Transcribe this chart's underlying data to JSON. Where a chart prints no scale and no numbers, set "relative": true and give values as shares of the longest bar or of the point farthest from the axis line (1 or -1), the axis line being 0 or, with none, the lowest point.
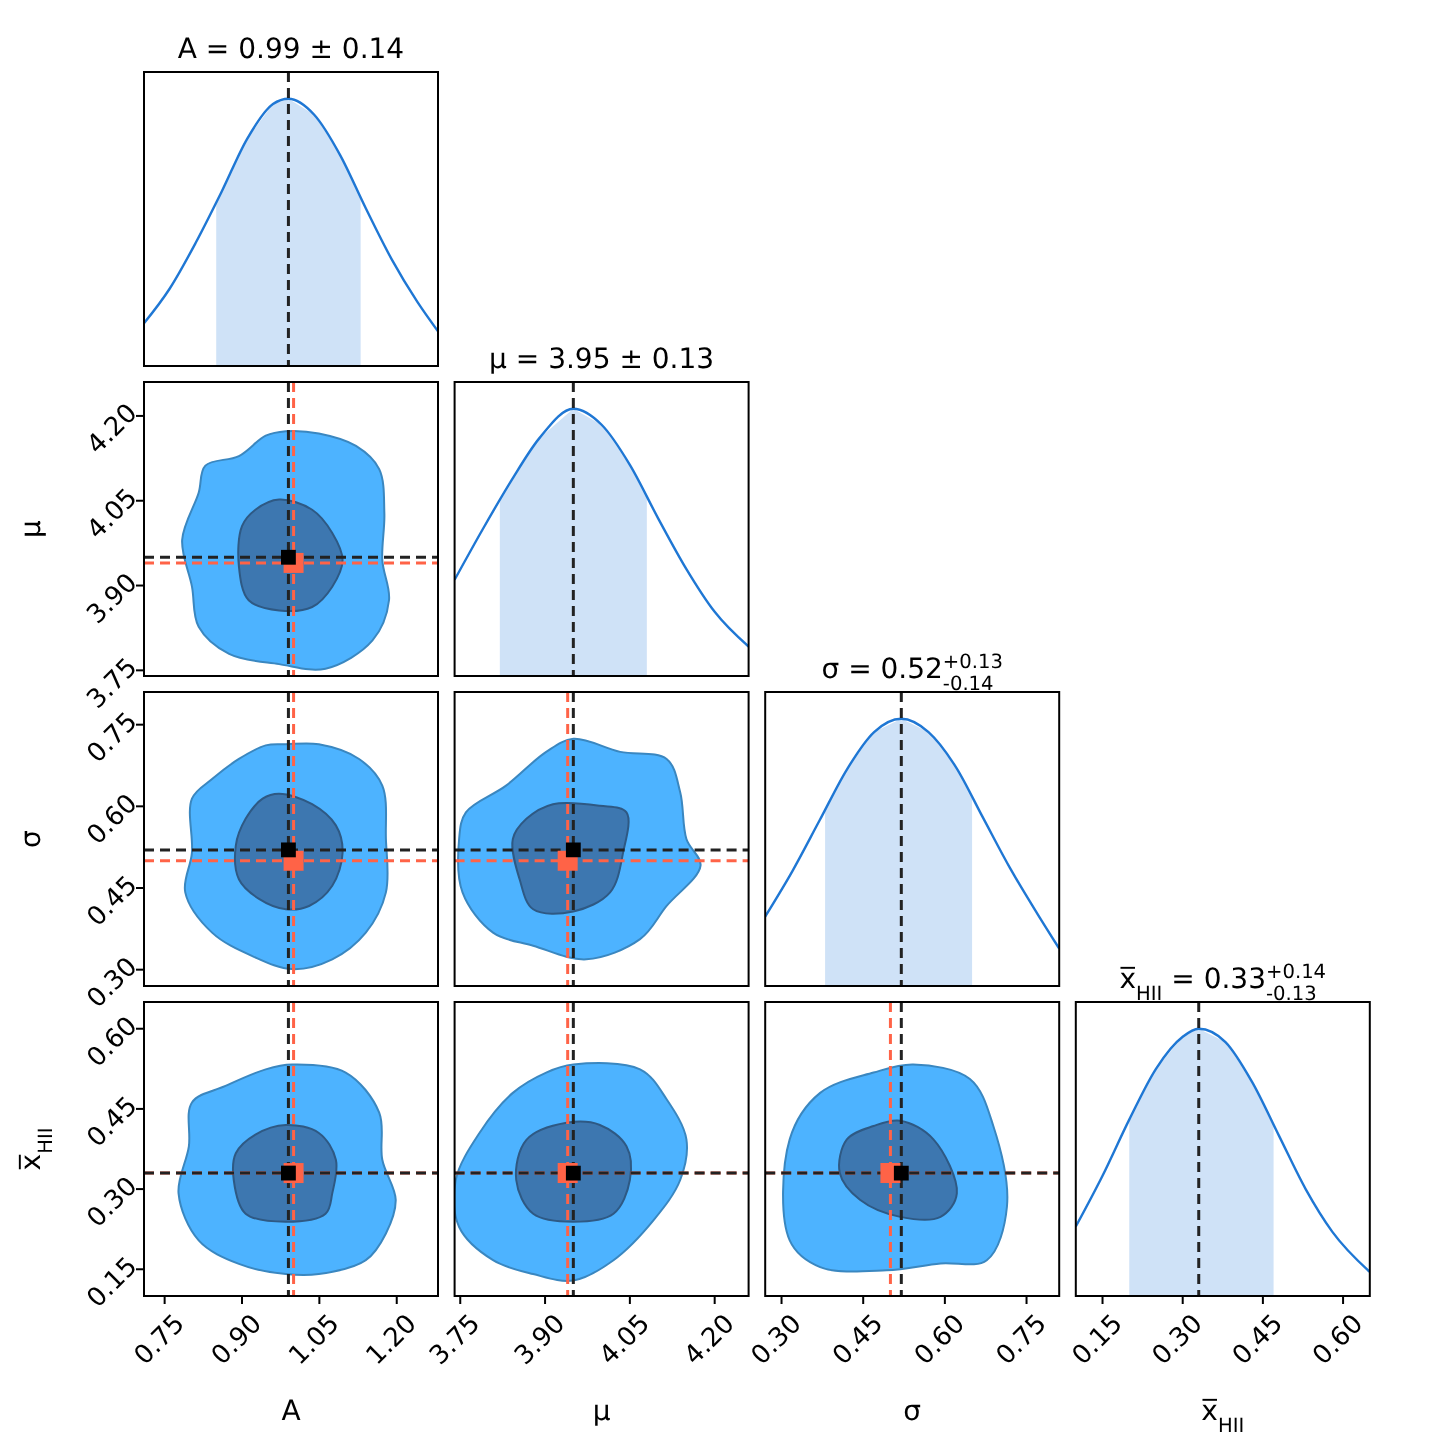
{
  "chart_data": [
    {
      "type": "line",
      "title": "A = 0.99 ± 0.14",
      "relative": true,
      "xlim": [
        0.71,
        1.28
      ],
      "tick_labels": false,
      "series": [
        {
          "color": "#1f77d4",
          "x": [
            0.71,
            0.76,
            0.81,
            0.86,
            0.91,
            0.96,
            0.99,
            1.04,
            1.09,
            1.14,
            1.19,
            1.24,
            1.28
          ],
          "values": [
            0.16,
            0.29,
            0.46,
            0.65,
            0.85,
            0.98,
            1,
            0.94,
            0.79,
            0.59,
            0.4,
            0.24,
            0.13
          ]
        }
      ],
      "bands": [
        {
          "axis": "x",
          "from": 0.85,
          "to": 1.13,
          "color": "#cfe2f7"
        }
      ],
      "ref_lines": [
        {
          "axis": "x",
          "value": 0.99,
          "color": "#222222",
          "line_style": "dashed"
        }
      ]
    },
    {
      "type": "area",
      "ylabel": "μ",
      "xlim": [
        0.71,
        1.28
      ],
      "ylim": [
        3.74,
        4.26
      ],
      "yticks": [
        {
          "value": 3.75,
          "label": "3.75"
        },
        {
          "value": 3.9,
          "label": "3.90"
        },
        4.05,
        {
          "value": 4.2,
          "label": "4.20"
        }
      ],
      "tick_labels": "y",
      "series": [
        {
          "color": "#4db3ff",
          "x": [
            0.985,
            1.049,
            1.121,
            1.166,
            1.176,
            1.172,
            1.185,
            1.153,
            1.062,
            0.972,
            0.875,
            0.816,
            0.803,
            0.784,
            0.816,
            0.829,
            0.894,
            0.946
          ],
          "values": [
            4.173,
            4.169,
            4.147,
            4.106,
            4.028,
            3.945,
            3.874,
            3.803,
            3.753,
            3.761,
            3.779,
            3.827,
            3.898,
            3.981,
            4.064,
            4.112,
            4.129,
            4.165
          ]
        },
        {
          "color": "#3d77b0",
          "x": [
            0.972,
            1.036,
            1.075,
            1.095,
            1.075,
            1.036,
            0.972,
            0.913,
            0.894,
            0.9,
            0.926
          ],
          "values": [
            4.052,
            4.034,
            3.993,
            3.945,
            3.898,
            3.862,
            3.856,
            3.874,
            3.934,
            4.005,
            4.034
          ]
        },
        {
          "type": "scatter",
          "marker": "square",
          "color": "#ff6347",
          "x": [
            1.0
          ],
          "values": [
            3.94
          ]
        },
        {
          "type": "scatter",
          "marker": "square",
          "color": "#000000",
          "x": [
            0.99
          ],
          "values": [
            3.95
          ]
        }
      ],
      "ref_lines": [
        {
          "axis": "x",
          "value": 1.0,
          "color": "#ff6347",
          "line_style": "dashed"
        },
        {
          "axis": "y",
          "value": 3.94,
          "color": "#ff6347",
          "line_style": "dashed"
        },
        {
          "axis": "x",
          "value": 0.99,
          "color": "#222222",
          "line_style": "dashed"
        },
        {
          "axis": "y",
          "value": 3.95,
          "color": "#222222",
          "line_style": "dashed"
        }
      ]
    },
    {
      "type": "line",
      "title": "μ = 3.95 ± 0.13",
      "relative": true,
      "xlim": [
        3.74,
        4.26
      ],
      "tick_labels": false,
      "series": [
        {
          "color": "#1f77d4",
          "x": [
            3.74,
            3.79,
            3.84,
            3.89,
            3.95,
            4.0,
            4.05,
            4.1,
            4.15,
            4.2,
            4.26
          ],
          "values": [
            0.36,
            0.55,
            0.73,
            0.89,
            1,
            0.94,
            0.79,
            0.59,
            0.4,
            0.24,
            0.11
          ]
        }
      ],
      "bands": [
        {
          "axis": "x",
          "from": 3.82,
          "to": 4.08,
          "color": "#cfe2f7"
        }
      ],
      "ref_lines": [
        {
          "axis": "x",
          "value": 3.95,
          "color": "#222222",
          "line_style": "dashed"
        }
      ]
    },
    {
      "type": "area",
      "ylabel": "σ",
      "xlim": [
        0.71,
        1.28
      ],
      "ylim": [
        0.27,
        0.81
      ],
      "yticks": [
        {
          "value": 0.3,
          "label": "0.30"
        },
        0.45,
        {
          "value": 0.6,
          "label": "0.60"
        },
        0.75
      ],
      "tick_labels": "y",
      "series": [
        {
          "color": "#4db3ff",
          "x": [
            0.985,
            1.049,
            1.127,
            1.172,
            1.179,
            1.179,
            1.14,
            1.075,
            0.997,
            0.92,
            0.842,
            0.79,
            0.803,
            0.803,
            0.842,
            0.894,
            0.946
          ],
          "values": [
            0.714,
            0.714,
            0.687,
            0.638,
            0.54,
            0.442,
            0.368,
            0.319,
            0.301,
            0.325,
            0.368,
            0.442,
            0.515,
            0.614,
            0.65,
            0.687,
            0.712
          ]
        },
        {
          "color": "#3d77b0",
          "x": [
            0.972,
            1.036,
            1.082,
            1.095,
            1.075,
            1.03,
            0.985,
            0.933,
            0.894,
            0.888,
            0.907,
            0.94
          ],
          "values": [
            0.623,
            0.604,
            0.565,
            0.515,
            0.454,
            0.417,
            0.411,
            0.43,
            0.466,
            0.528,
            0.577,
            0.614
          ]
        },
        {
          "type": "scatter",
          "marker": "square",
          "color": "#ff6347",
          "x": [
            1.0
          ],
          "values": [
            0.5
          ]
        },
        {
          "type": "scatter",
          "marker": "square",
          "color": "#000000",
          "x": [
            0.99
          ],
          "values": [
            0.52
          ]
        }
      ],
      "ref_lines": [
        {
          "axis": "x",
          "value": 1.0,
          "color": "#ff6347",
          "line_style": "dashed"
        },
        {
          "axis": "y",
          "value": 0.5,
          "color": "#ff6347",
          "line_style": "dashed"
        },
        {
          "axis": "x",
          "value": 0.99,
          "color": "#222222",
          "line_style": "dashed"
        },
        {
          "axis": "y",
          "value": 0.52,
          "color": "#222222",
          "line_style": "dashed"
        }
      ]
    },
    {
      "type": "area",
      "xlim": [
        3.74,
        4.26
      ],
      "ylim": [
        0.27,
        0.81
      ],
      "tick_labels": false,
      "series": [
        {
          "color": "#4db3ff",
          "x": [
            3.95,
            4.033,
            4.115,
            4.139,
            4.15,
            4.175,
            4.115,
            4.068,
            3.973,
            3.879,
            3.808,
            3.754,
            3.748,
            3.76,
            3.831,
            3.902
          ],
          "values": [
            0.724,
            0.7,
            0.687,
            0.626,
            0.54,
            0.491,
            0.417,
            0.356,
            0.319,
            0.344,
            0.368,
            0.442,
            0.54,
            0.589,
            0.638,
            0.7
          ]
        },
        {
          "color": "#3d77b0",
          "x": [
            3.914,
            3.997,
            4.044,
            4.038,
            4.015,
            3.95,
            3.879,
            3.855,
            3.843,
            3.867
          ],
          "values": [
            0.604,
            0.601,
            0.589,
            0.515,
            0.442,
            0.407,
            0.411,
            0.466,
            0.54,
            0.577
          ]
        },
        {
          "type": "scatter",
          "marker": "square",
          "color": "#ff6347",
          "x": [
            3.94
          ],
          "values": [
            0.5
          ]
        },
        {
          "type": "scatter",
          "marker": "square",
          "color": "#000000",
          "x": [
            3.95
          ],
          "values": [
            0.52
          ]
        }
      ],
      "ref_lines": [
        {
          "axis": "x",
          "value": 3.94,
          "color": "#ff6347",
          "line_style": "dashed"
        },
        {
          "axis": "y",
          "value": 0.5,
          "color": "#ff6347",
          "line_style": "dashed"
        },
        {
          "axis": "x",
          "value": 3.95,
          "color": "#222222",
          "line_style": "dashed"
        },
        {
          "axis": "y",
          "value": 0.52,
          "color": "#222222",
          "line_style": "dashed"
        }
      ]
    },
    {
      "type": "line",
      "title": "σ = 0.52$^{+0.13}$$_{-0.14}$",
      "relative": true,
      "xlim": [
        0.27,
        0.81
      ],
      "tick_labels": false,
      "series": [
        {
          "color": "#1f77d4",
          "x": [
            0.27,
            0.32,
            0.37,
            0.42,
            0.47,
            0.52,
            0.57,
            0.62,
            0.67,
            0.72,
            0.77,
            0.81
          ],
          "values": [
            0.26,
            0.43,
            0.62,
            0.81,
            0.95,
            1,
            0.95,
            0.82,
            0.63,
            0.44,
            0.27,
            0.14
          ]
        }
      ],
      "bands": [
        {
          "axis": "x",
          "from": 0.38,
          "to": 0.65,
          "color": "#cfe2f7"
        }
      ],
      "ref_lines": [
        {
          "axis": "x",
          "value": 0.52,
          "color": "#222222",
          "line_style": "dashed"
        }
      ]
    },
    {
      "type": "area",
      "xlabel": "A",
      "ylabel": "x̅$_{HII}$",
      "xlim": [
        0.71,
        1.28
      ],
      "ylim": [
        0.1,
        0.65
      ],
      "xticks": [
        0.75,
        {
          "value": 0.9,
          "label": "0.90"
        },
        1.05,
        {
          "value": 1.2,
          "label": "1.20"
        }
      ],
      "yticks": [
        0.15,
        {
          "value": 0.3,
          "label": "0.30"
        },
        0.45,
        {
          "value": 0.6,
          "label": "0.60"
        }
      ],
      "series": [
        {
          "color": "#4db3ff",
          "x": [
            0.997,
            1.101,
            1.166,
            1.172,
            1.198,
            1.179,
            1.14,
            1.049,
            0.985,
            0.894,
            0.816,
            0.777,
            0.797,
            0.803,
            0.868,
            0.946
          ],
          "values": [
            0.533,
            0.518,
            0.443,
            0.355,
            0.28,
            0.217,
            0.167,
            0.141,
            0.141,
            0.16,
            0.204,
            0.292,
            0.38,
            0.462,
            0.493,
            0.524
          ]
        },
        {
          "color": "#3d77b0",
          "x": [
            0.985,
            1.049,
            1.082,
            1.075,
            1.062,
            0.985,
            0.907,
            0.884,
            0.888,
            0.926
          ],
          "values": [
            0.42,
            0.405,
            0.355,
            0.292,
            0.254,
            0.239,
            0.254,
            0.317,
            0.367,
            0.402
          ]
        },
        {
          "type": "scatter",
          "marker": "square",
          "color": "#ff6347",
          "x": [
            1.0
          ],
          "values": [
            0.33
          ]
        },
        {
          "type": "scatter",
          "marker": "square",
          "color": "#000000",
          "x": [
            0.99
          ],
          "values": [
            0.33
          ]
        }
      ],
      "ref_lines": [
        {
          "axis": "x",
          "value": 1.0,
          "color": "#ff6347",
          "line_style": "dashed"
        },
        {
          "axis": "y",
          "value": 0.33,
          "color": "#ff6347",
          "line_style": "dashed"
        },
        {
          "axis": "x",
          "value": 0.99,
          "color": "#222222",
          "line_style": "dashed"
        },
        {
          "axis": "y",
          "value": 0.33,
          "color": "#222222",
          "line_style": "dashed"
        }
      ]
    },
    {
      "type": "area",
      "xlabel": "μ",
      "xlim": [
        3.74,
        4.26
      ],
      "ylim": [
        0.1,
        0.65
      ],
      "xticks": [
        3.75,
        {
          "value": 3.9,
          "label": "3.90"
        },
        4.05,
        {
          "value": 4.2,
          "label": "4.20"
        }
      ],
      "tick_labels": "x",
      "series": [
        {
          "color": "#4db3ff",
          "x": [
            3.95,
            4.068,
            4.115,
            4.15,
            4.139,
            4.092,
            4.021,
            3.95,
            3.879,
            3.808,
            3.748,
            3.742,
            3.784,
            3.843,
            3.902
          ],
          "values": [
            0.533,
            0.524,
            0.468,
            0.393,
            0.317,
            0.242,
            0.167,
            0.129,
            0.141,
            0.167,
            0.229,
            0.317,
            0.405,
            0.48,
            0.518
          ]
        },
        {
          "color": "#3d77b0",
          "x": [
            3.938,
            3.997,
            4.044,
            4.05,
            4.021,
            3.95,
            3.879,
            3.849,
            3.867
          ],
          "values": [
            0.424,
            0.42,
            0.38,
            0.317,
            0.254,
            0.239,
            0.254,
            0.317,
            0.392
          ]
        },
        {
          "type": "scatter",
          "marker": "square",
          "color": "#ff6347",
          "x": [
            3.94
          ],
          "values": [
            0.33
          ]
        },
        {
          "type": "scatter",
          "marker": "square",
          "color": "#000000",
          "x": [
            3.95
          ],
          "values": [
            0.33
          ]
        }
      ],
      "ref_lines": [
        {
          "axis": "x",
          "value": 3.94,
          "color": "#ff6347",
          "line_style": "dashed"
        },
        {
          "axis": "y",
          "value": 0.33,
          "color": "#ff6347",
          "line_style": "dashed"
        },
        {
          "axis": "x",
          "value": 3.95,
          "color": "#222222",
          "line_style": "dashed"
        },
        {
          "axis": "y",
          "value": 0.33,
          "color": "#222222",
          "line_style": "dashed"
        }
      ]
    },
    {
      "type": "area",
      "xlabel": "σ",
      "xlim": [
        0.27,
        0.81
      ],
      "ylim": [
        0.1,
        0.65
      ],
      "xticks": [
        {
          "value": 0.3,
          "label": "0.30"
        },
        0.45,
        {
          "value": 0.6,
          "label": "0.60"
        },
        0.75
      ],
      "tick_labels": "x",
      "series": [
        {
          "color": "#4db3ff",
          "x": [
            0.542,
            0.646,
            0.689,
            0.714,
            0.677,
            0.592,
            0.493,
            0.371,
            0.315,
            0.315,
            0.371,
            0.469
          ],
          "values": [
            0.533,
            0.506,
            0.418,
            0.267,
            0.167,
            0.161,
            0.148,
            0.154,
            0.204,
            0.393,
            0.48,
            0.518
          ]
        },
        {
          "color": "#3d77b0",
          "x": [
            0.518,
            0.579,
            0.622,
            0.592,
            0.518,
            0.444,
            0.407,
            0.42,
            0.469
          ],
          "values": [
            0.428,
            0.393,
            0.292,
            0.248,
            0.248,
            0.28,
            0.33,
            0.393,
            0.418
          ]
        },
        {
          "type": "scatter",
          "marker": "square",
          "color": "#ff6347",
          "x": [
            0.5
          ],
          "values": [
            0.33
          ]
        },
        {
          "type": "scatter",
          "marker": "square",
          "color": "#000000",
          "x": [
            0.52
          ],
          "values": [
            0.33
          ]
        }
      ],
      "ref_lines": [
        {
          "axis": "x",
          "value": 0.5,
          "color": "#ff6347",
          "line_style": "dashed"
        },
        {
          "axis": "y",
          "value": 0.33,
          "color": "#ff6347",
          "line_style": "dashed"
        },
        {
          "axis": "x",
          "value": 0.52,
          "color": "#222222",
          "line_style": "dashed"
        },
        {
          "axis": "y",
          "value": 0.33,
          "color": "#222222",
          "line_style": "dashed"
        }
      ]
    },
    {
      "type": "line",
      "title": "x̅$_{HII}$ = 0.33$^{+0.14}$$_{-0.13}$",
      "xlabel": "x̅$_{HII}$",
      "relative": true,
      "xlim": [
        0.1,
        0.65
      ],
      "xticks": [
        0.15,
        {
          "value": 0.3,
          "label": "0.30"
        },
        0.45,
        {
          "value": 0.6,
          "label": "0.60"
        }
      ],
      "tick_labels": "x",
      "series": [
        {
          "color": "#1f77d4",
          "x": [
            0.1,
            0.15,
            0.2,
            0.25,
            0.3,
            0.33,
            0.38,
            0.43,
            0.48,
            0.53,
            0.58,
            0.65
          ],
          "values": [
            0.26,
            0.45,
            0.66,
            0.85,
            0.97,
            1,
            0.95,
            0.8,
            0.6,
            0.4,
            0.24,
            0.09
          ]
        }
      ],
      "bands": [
        {
          "axis": "x",
          "from": 0.2,
          "to": 0.47,
          "color": "#cfe2f7"
        }
      ],
      "ref_lines": [
        {
          "axis": "x",
          "value": 0.33,
          "color": "#222222",
          "line_style": "dashed"
        }
      ]
    }
  ]
}
